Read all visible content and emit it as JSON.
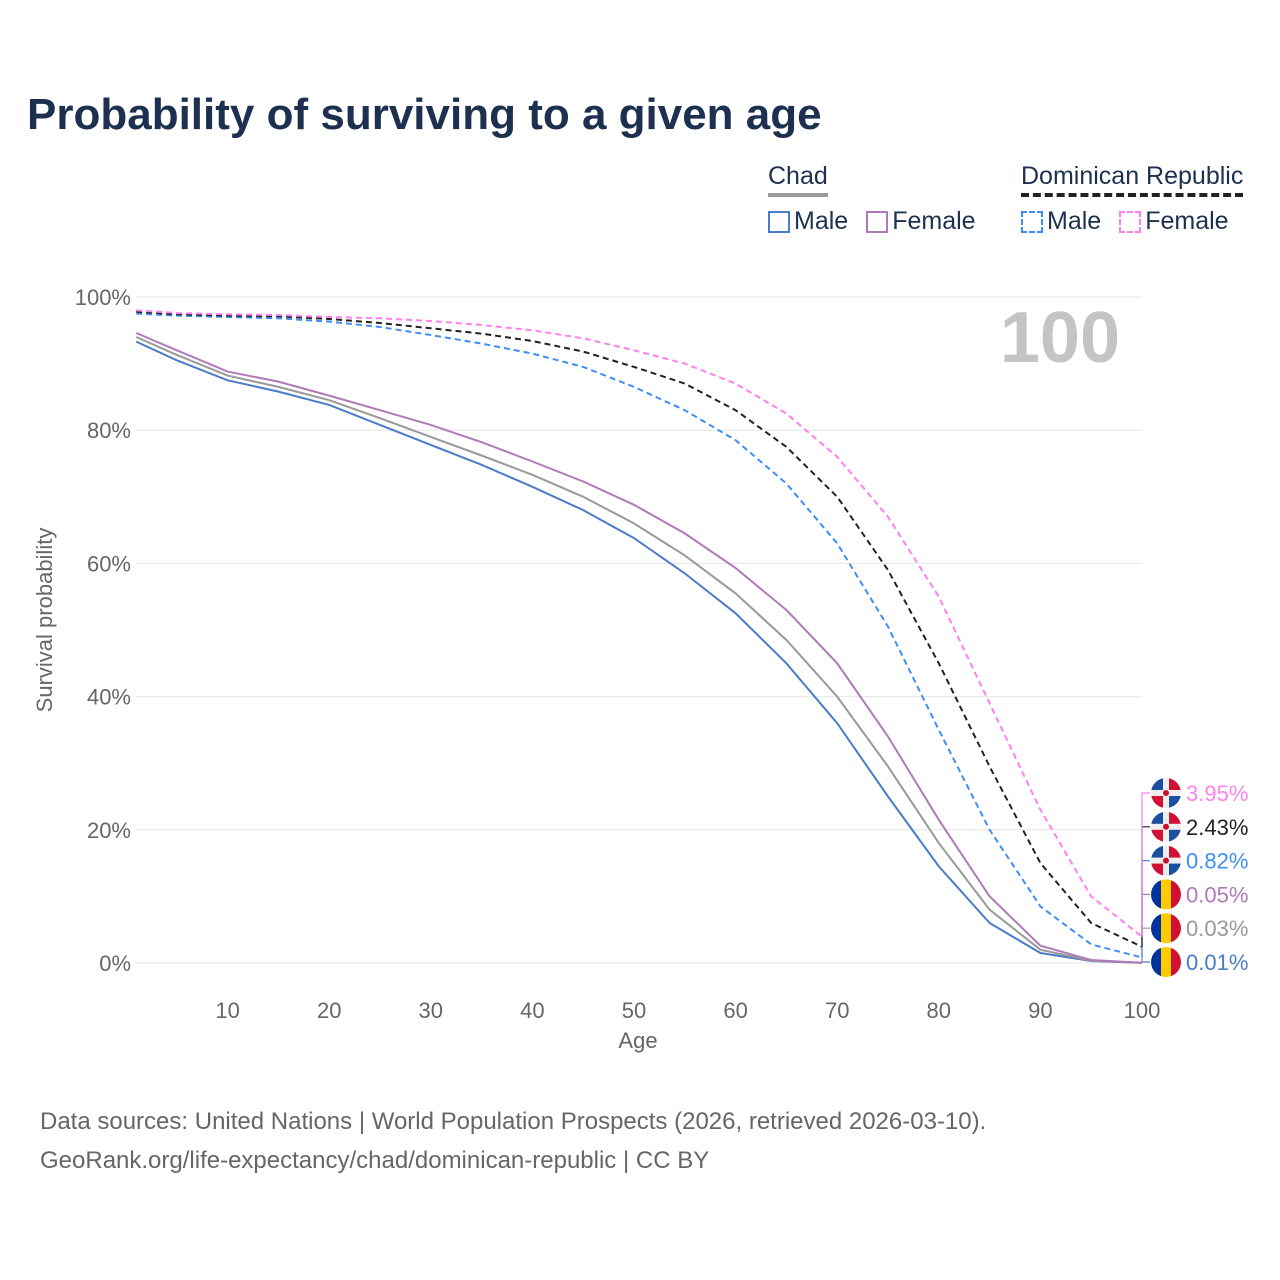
{
  "title": "Probability of surviving to a given age",
  "legend": {
    "groups": [
      {
        "name": "Chad",
        "line_color": "#999999",
        "dashed": false,
        "items": [
          {
            "label": "Male",
            "color": "#4a7cc9"
          },
          {
            "label": "Female",
            "color": "#b07ab8"
          }
        ]
      },
      {
        "name": "Dominican Republic",
        "line_color": "#222222",
        "dashed": true,
        "items": [
          {
            "label": "Male",
            "color": "#3f8ef5"
          },
          {
            "label": "Female",
            "color": "#ff80f0"
          }
        ]
      }
    ]
  },
  "chart_data": {
    "type": "line",
    "title": "Probability of surviving to a given age",
    "xlabel": "Age",
    "ylabel": "Survival probability",
    "xlim": [
      0,
      100
    ],
    "ylim": [
      0,
      100
    ],
    "x_ticks": [
      10,
      20,
      30,
      40,
      50,
      60,
      70,
      80,
      90,
      100
    ],
    "y_ticks": [
      "0%",
      "20%",
      "40%",
      "60%",
      "80%",
      "100%"
    ],
    "y_tick_values": [
      0,
      20,
      40,
      60,
      80,
      100
    ],
    "grid": true,
    "annotation": "100",
    "x": [
      1,
      5,
      10,
      15,
      20,
      25,
      30,
      35,
      40,
      45,
      50,
      55,
      60,
      65,
      70,
      75,
      80,
      85,
      90,
      95,
      100
    ],
    "series": [
      {
        "name": "Chad Male",
        "country": "chad",
        "color": "#4a7cc9",
        "dashed": false,
        "end_label": "0.01%",
        "values": [
          93.3,
          90.5,
          87.5,
          85.8,
          83.8,
          80.8,
          77.8,
          74.8,
          71.5,
          68.0,
          63.8,
          58.5,
          52.5,
          45.0,
          36.0,
          25.0,
          14.5,
          6.0,
          1.5,
          0.3,
          0.01
        ]
      },
      {
        "name": "Chad",
        "country": "chad",
        "color": "#999999",
        "dashed": false,
        "end_label": "0.03%",
        "values": [
          94.0,
          91.3,
          88.2,
          86.5,
          84.5,
          81.8,
          79.0,
          76.2,
          73.3,
          70.0,
          66.0,
          61.2,
          55.5,
          48.5,
          40.0,
          29.5,
          18.0,
          8.0,
          2.0,
          0.35,
          0.03
        ]
      },
      {
        "name": "Chad Female",
        "country": "chad",
        "color": "#b07ab8",
        "dashed": false,
        "end_label": "0.05%",
        "values": [
          94.6,
          92.0,
          88.8,
          87.3,
          85.2,
          83.0,
          80.8,
          78.2,
          75.3,
          72.3,
          68.8,
          64.5,
          59.3,
          53.0,
          45.0,
          34.0,
          21.5,
          10.0,
          2.6,
          0.45,
          0.05
        ]
      },
      {
        "name": "Dominican Republic Male",
        "country": "dominican-republic",
        "color": "#3f8ef5",
        "dashed": true,
        "end_label": "0.82%",
        "values": [
          97.5,
          97.2,
          97.0,
          96.8,
          96.3,
          95.5,
          94.3,
          93.0,
          91.5,
          89.5,
          86.5,
          83.0,
          78.5,
          72.0,
          63.0,
          50.5,
          35.0,
          20.0,
          8.5,
          2.8,
          0.82
        ]
      },
      {
        "name": "Dominican Republic",
        "country": "dominican-republic",
        "color": "#222222",
        "dashed": true,
        "end_label": "2.43%",
        "values": [
          97.8,
          97.4,
          97.2,
          97.1,
          96.7,
          96.1,
          95.3,
          94.5,
          93.4,
          91.8,
          89.5,
          87.0,
          83.0,
          77.5,
          70.0,
          59.0,
          45.0,
          29.5,
          15.0,
          6.0,
          2.43
        ]
      },
      {
        "name": "Dominican Republic Female",
        "country": "dominican-republic",
        "color": "#ff80f0",
        "dashed": true,
        "end_label": "3.95%",
        "values": [
          98.0,
          97.6,
          97.4,
          97.3,
          97.0,
          96.8,
          96.4,
          95.8,
          95.0,
          93.8,
          92.0,
          90.0,
          87.0,
          82.5,
          76.0,
          67.0,
          55.0,
          39.0,
          23.0,
          10.0,
          3.95
        ]
      }
    ]
  },
  "footer": {
    "line1": "Data sources: United Nations | World Population Prospects (2026, retrieved 2026-03-10).",
    "line2": "GeoRank.org/life-expectancy/chad/dominican-republic | CC BY"
  }
}
